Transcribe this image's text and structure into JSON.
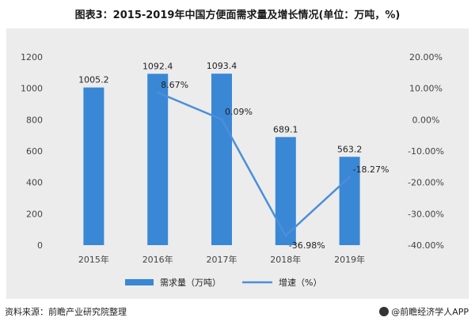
{
  "title": "图表3：2015-2019年中国方便面需求量及增长情况(单位：万吨，%)",
  "source": "资料来源：前瞻产业研究院整理",
  "brand": "@前瞻经济学人APP",
  "colors": {
    "bar": "#3a87d6",
    "line": "#4a8fda",
    "panel": "#ececec"
  },
  "chart_data": {
    "type": "bar",
    "categories": [
      "2015年",
      "2016年",
      "2017年",
      "2018年",
      "2019年"
    ],
    "series": [
      {
        "name": "需求量（万吨）",
        "type": "bar",
        "axis": "left",
        "values": [
          1005.2,
          1092.4,
          1093.4,
          689.1,
          563.2
        ],
        "labels": [
          "1005.2",
          "1092.4",
          "1093.4",
          "689.1",
          "563.2"
        ]
      },
      {
        "name": "增速（%）",
        "type": "line",
        "axis": "right",
        "values": [
          null,
          8.67,
          0.09,
          -36.98,
          -18.27
        ],
        "labels": [
          "",
          "8.67%",
          "0.09%",
          "-36.98%",
          "-18.27%"
        ]
      }
    ],
    "y_left": {
      "min": 0,
      "max": 1200,
      "ticks": [
        "0",
        "200",
        "400",
        "600",
        "800",
        "1000",
        "1200"
      ]
    },
    "y_right": {
      "min": -40,
      "max": 20,
      "ticks": [
        "-40.00%",
        "-30.00%",
        "-20.00%",
        "-10.00%",
        "0.00%",
        "10.00%",
        "20.00%"
      ]
    },
    "legend_position": "bottom"
  }
}
